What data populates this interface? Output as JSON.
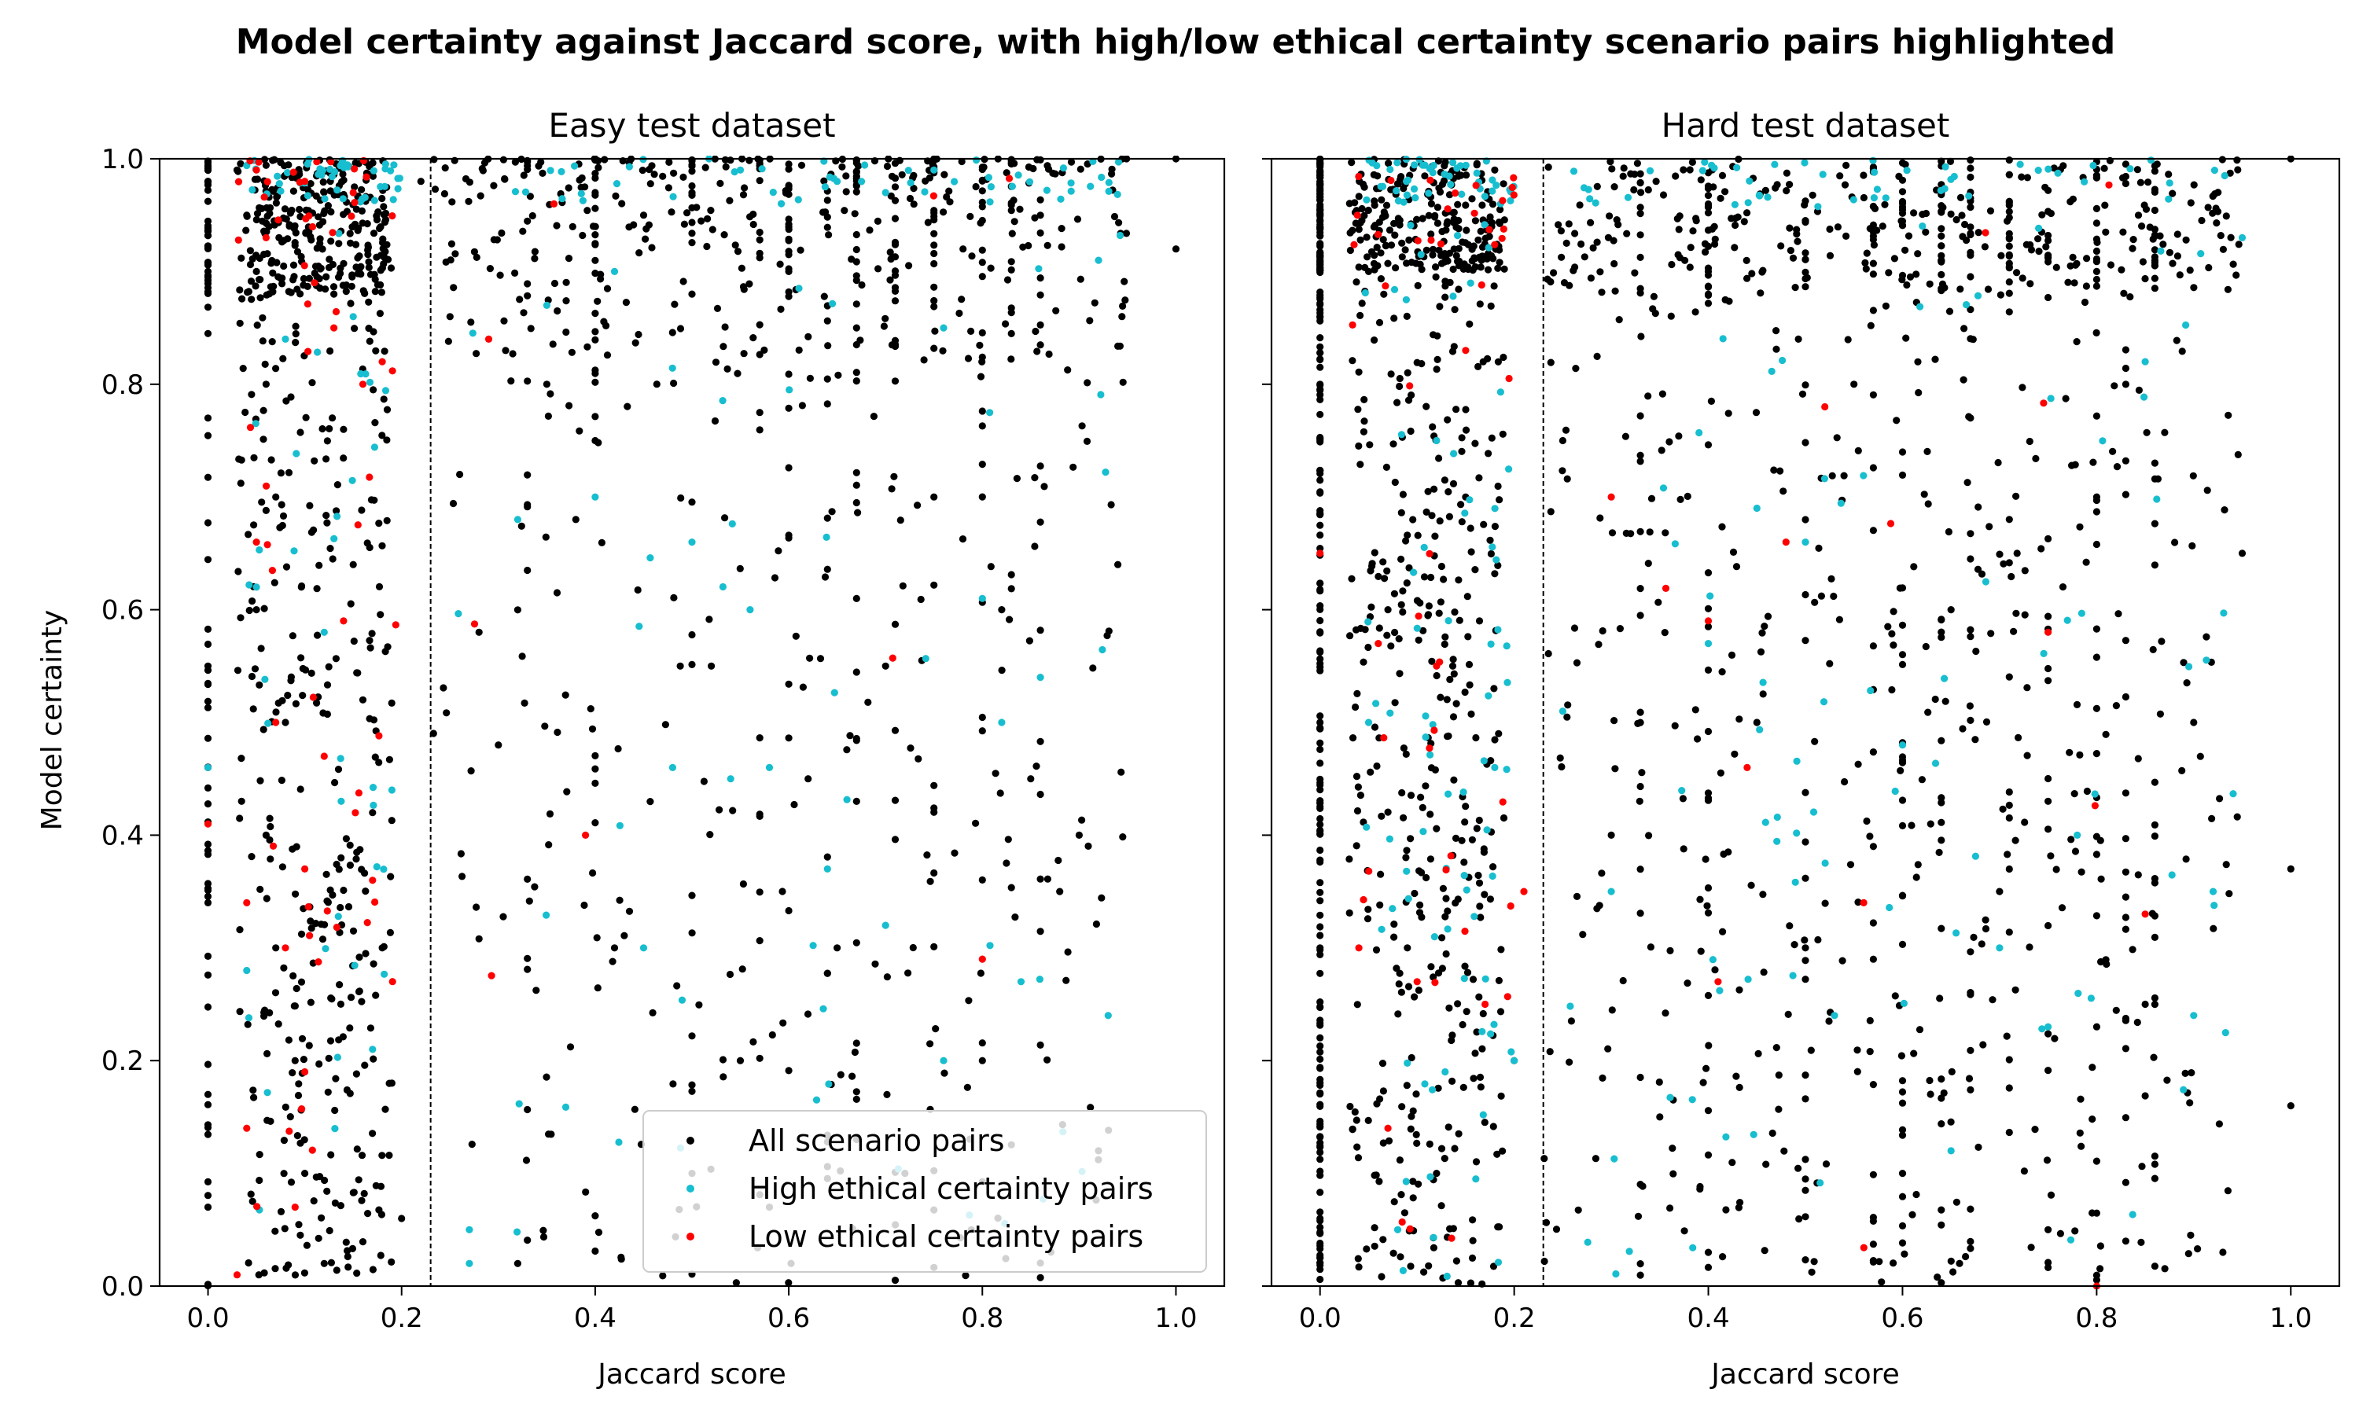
{
  "figure": {
    "title": "Model certainty against Jaccard score, with high/low ethical certainty scenario pairs highlighted",
    "ylabel": "Model certainty",
    "legend": {
      "location": "lower-right of left panel",
      "entries": [
        {
          "label": "All scenario pairs",
          "color": "#000000"
        },
        {
          "label": "High ethical certainty pairs",
          "color": "#17becf"
        },
        {
          "label": "Low ethical certainty pairs",
          "color": "#ff0000"
        }
      ]
    }
  },
  "chart_data": [
    {
      "type": "scatter",
      "title": "Easy test dataset",
      "xlabel": "Jaccard score",
      "ylabel": "Model certainty",
      "xlim": [
        -0.05,
        1.05
      ],
      "ylim": [
        0.0,
        1.0
      ],
      "xticks": [
        "0.0",
        "0.2",
        "0.4",
        "0.6",
        "0.8",
        "1.0"
      ],
      "yticks": [
        "0.0",
        "0.2",
        "0.4",
        "0.6",
        "0.8",
        "1.0"
      ],
      "vline_x": 0.23,
      "grid": false,
      "legend_location": "lower-right",
      "series": [
        {
          "name": "All scenario pairs",
          "color": "#000000",
          "approx_count": 2600,
          "points": [
            [
              0.0,
              0.98
            ],
            [
              0.0,
              0.9
            ],
            [
              0.0,
              0.77
            ],
            [
              0.0,
              0.55
            ],
            [
              0.0,
              0.46
            ],
            [
              0.0,
              0.34
            ],
            [
              0.0,
              0.17
            ],
            [
              0.0,
              0.07
            ],
            [
              0.03,
              0.99
            ],
            [
              0.04,
              0.95
            ],
            [
              0.05,
              0.9
            ],
            [
              0.06,
              0.8
            ],
            [
              0.07,
              0.7
            ],
            [
              0.05,
              0.6
            ],
            [
              0.08,
              0.5
            ],
            [
              0.06,
              0.4
            ],
            [
              0.07,
              0.3
            ],
            [
              0.09,
              0.2
            ],
            [
              0.1,
              0.1
            ],
            [
              0.12,
              0.02
            ],
            [
              0.13,
              0.88
            ],
            [
              0.14,
              0.76
            ],
            [
              0.15,
              0.64
            ],
            [
              0.16,
              0.52
            ],
            [
              0.17,
              0.42
            ],
            [
              0.18,
              0.3
            ],
            [
              0.19,
              0.18
            ],
            [
              0.2,
              0.06
            ],
            [
              0.22,
              0.98
            ],
            [
              0.25,
              0.86
            ],
            [
              0.26,
              0.72
            ],
            [
              0.28,
              0.58
            ],
            [
              0.3,
              0.48
            ],
            [
              0.32,
              0.02
            ],
            [
              0.35,
              0.8
            ],
            [
              0.38,
              0.68
            ],
            [
              0.4,
              0.75
            ],
            [
              0.42,
              0.3
            ],
            [
              0.45,
              0.95
            ],
            [
              0.5,
              0.88
            ],
            [
              0.52,
              0.55
            ],
            [
              0.55,
              0.2
            ],
            [
              0.58,
              0.07
            ],
            [
              0.6,
              0.9
            ],
            [
              0.62,
              0.45
            ],
            [
              0.65,
              0.3
            ],
            [
              0.67,
              0.85
            ],
            [
              0.7,
              0.55
            ],
            [
              0.72,
              0.1
            ],
            [
              0.75,
              0.7
            ],
            [
              0.78,
              0.92
            ],
            [
              0.8,
              0.2
            ],
            [
              0.82,
              0.6
            ],
            [
              0.85,
              0.45
            ],
            [
              0.88,
              0.35
            ],
            [
              0.9,
              0.4
            ],
            [
              0.92,
              0.12
            ],
            [
              0.94,
              0.64
            ],
            [
              1.0,
              0.92
            ],
            [
              1.0,
              1.0
            ]
          ]
        },
        {
          "name": "High ethical certainty pairs",
          "color": "#17becf",
          "approx_count": 200,
          "points": [
            [
              0.0,
              0.46
            ],
            [
              0.04,
              0.28
            ],
            [
              0.05,
              0.62
            ],
            [
              0.08,
              0.84
            ],
            [
              0.12,
              0.58
            ],
            [
              0.15,
              0.86
            ],
            [
              0.17,
              0.21
            ],
            [
              0.19,
              0.44
            ],
            [
              0.27,
              0.05
            ],
            [
              0.27,
              0.02
            ],
            [
              0.32,
              0.68
            ],
            [
              0.35,
              0.87
            ],
            [
              0.4,
              0.7
            ],
            [
              0.42,
              0.9
            ],
            [
              0.45,
              0.3
            ],
            [
              0.48,
              0.46
            ],
            [
              0.5,
              0.66
            ],
            [
              0.54,
              0.45
            ],
            [
              0.56,
              0.6
            ],
            [
              0.58,
              0.46
            ],
            [
              0.64,
              0.37
            ],
            [
              0.7,
              0.32
            ],
            [
              0.76,
              0.2
            ],
            [
              0.76,
              0.85
            ],
            [
              0.8,
              0.61
            ],
            [
              0.82,
              0.5
            ],
            [
              0.84,
              0.27
            ],
            [
              0.86,
              0.54
            ],
            [
              0.92,
              0.91
            ],
            [
              0.93,
              0.24
            ],
            [
              0.55,
              0.99
            ],
            [
              0.65,
              0.98
            ],
            [
              0.7,
              0.97
            ],
            [
              0.75,
              0.99
            ]
          ]
        },
        {
          "name": "Low ethical certainty pairs",
          "color": "#ff0000",
          "approx_count": 80,
          "points": [
            [
              0.0,
              0.41
            ],
            [
              0.03,
              0.01
            ],
            [
              0.04,
              0.14
            ],
            [
              0.04,
              0.34
            ],
            [
              0.05,
              0.66
            ],
            [
              0.06,
              0.93
            ],
            [
              0.07,
              0.5
            ],
            [
              0.08,
              0.3
            ],
            [
              0.09,
              0.07
            ],
            [
              0.1,
              0.19
            ],
            [
              0.1,
              0.37
            ],
            [
              0.11,
              0.89
            ],
            [
              0.12,
              0.47
            ],
            [
              0.13,
              0.85
            ],
            [
              0.14,
              0.59
            ],
            [
              0.16,
              0.8
            ],
            [
              0.17,
              0.36
            ],
            [
              0.18,
              0.82
            ],
            [
              0.29,
              0.84
            ],
            [
              0.39,
              0.4
            ],
            [
              0.8,
              0.29
            ],
            [
              0.05,
              0.99
            ],
            [
              0.1,
              0.98
            ],
            [
              0.15,
              0.97
            ]
          ]
        }
      ]
    },
    {
      "type": "scatter",
      "title": "Hard test dataset",
      "xlabel": "Jaccard score",
      "ylabel": "",
      "xlim": [
        -0.05,
        1.05
      ],
      "ylim": [
        0.0,
        1.0
      ],
      "xticks": [
        "0.0",
        "0.2",
        "0.4",
        "0.6",
        "0.8",
        "1.0"
      ],
      "yticks": [],
      "vline_x": 0.23,
      "grid": false,
      "series": [
        {
          "name": "All scenario pairs",
          "color": "#000000",
          "approx_count": 3300,
          "points": [
            [
              0.0,
              0.95
            ],
            [
              0.0,
              0.8
            ],
            [
              0.0,
              0.5
            ],
            [
              0.0,
              0.3
            ],
            [
              0.0,
              0.06
            ],
            [
              0.05,
              0.9
            ],
            [
              0.07,
              0.6
            ],
            [
              0.09,
              0.3
            ],
            [
              0.12,
              0.1
            ],
            [
              0.15,
              0.7
            ],
            [
              0.2,
              0.2
            ],
            [
              0.25,
              0.75
            ],
            [
              0.3,
              0.4
            ],
            [
              0.35,
              0.15
            ],
            [
              0.4,
              0.9
            ],
            [
              0.45,
              0.5
            ],
            [
              0.5,
              0.3
            ],
            [
              0.55,
              0.8
            ],
            [
              0.6,
              0.1
            ],
            [
              0.65,
              0.6
            ],
            [
              0.7,
              0.35
            ],
            [
              0.75,
              0.05
            ],
            [
              0.8,
              0.7
            ],
            [
              0.85,
              0.25
            ],
            [
              0.9,
              0.5
            ],
            [
              0.93,
              0.03
            ],
            [
              0.95,
              0.65
            ],
            [
              1.0,
              0.37
            ],
            [
              1.0,
              0.16
            ],
            [
              1.0,
              1.0
            ]
          ]
        },
        {
          "name": "High ethical certainty pairs",
          "color": "#17becf",
          "approx_count": 260,
          "points": [
            [
              0.05,
              0.5
            ],
            [
              0.08,
              0.05
            ],
            [
              0.12,
              0.75
            ],
            [
              0.18,
              0.46
            ],
            [
              0.2,
              0.2
            ],
            [
              0.25,
              0.51
            ],
            [
              0.3,
              0.35
            ],
            [
              0.4,
              0.57
            ],
            [
              0.45,
              0.69
            ],
            [
              0.5,
              0.66
            ],
            [
              0.53,
              0.24
            ],
            [
              0.6,
              0.48
            ],
            [
              0.65,
              0.12
            ],
            [
              0.7,
              0.3
            ],
            [
              0.75,
              0.23
            ],
            [
              0.78,
              0.4
            ],
            [
              0.85,
              0.82
            ],
            [
              0.9,
              0.24
            ],
            [
              0.92,
              0.35
            ],
            [
              0.95,
              0.93
            ]
          ]
        },
        {
          "name": "Low ethical certainty pairs",
          "color": "#ff0000",
          "approx_count": 70,
          "points": [
            [
              0.0,
              0.65
            ],
            [
              0.04,
              0.3
            ],
            [
              0.06,
              0.57
            ],
            [
              0.07,
              0.14
            ],
            [
              0.1,
              0.27
            ],
            [
              0.12,
              0.55
            ],
            [
              0.15,
              0.83
            ],
            [
              0.17,
              0.25
            ],
            [
              0.21,
              0.35
            ],
            [
              0.3,
              0.7
            ],
            [
              0.4,
              0.59
            ],
            [
              0.41,
              0.27
            ],
            [
              0.44,
              0.46
            ],
            [
              0.48,
              0.66
            ],
            [
              0.52,
              0.78
            ],
            [
              0.56,
              0.34
            ],
            [
              0.75,
              0.58
            ],
            [
              0.8,
              0.0
            ],
            [
              0.85,
              0.33
            ]
          ]
        }
      ]
    }
  ]
}
